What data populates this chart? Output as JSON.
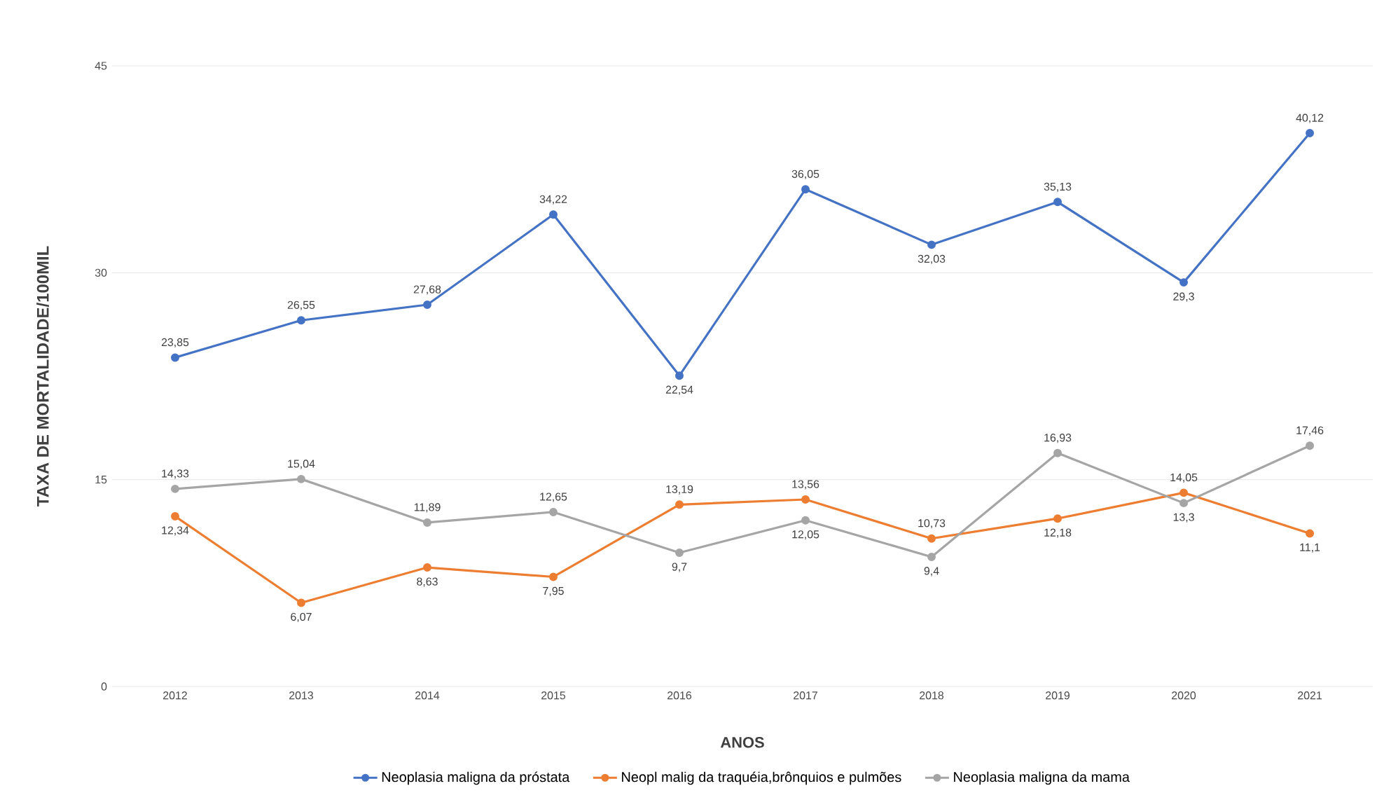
{
  "chart_data": {
    "type": "line",
    "xlabel": "ANOS",
    "ylabel": "TAXA DE MORTALIDADE/100MIL",
    "categories": [
      "2012",
      "2013",
      "2014",
      "2015",
      "2016",
      "2017",
      "2018",
      "2019",
      "2020",
      "2021"
    ],
    "series": [
      {
        "name": "Neoplasia maligna da próstata",
        "color": "#4472c4",
        "values": [
          23.85,
          26.55,
          27.68,
          34.22,
          22.54,
          36.05,
          32.03,
          35.13,
          29.3,
          40.12
        ],
        "value_labels": [
          "23,85",
          "26,55",
          "27,68",
          "34,22",
          "22,54",
          "36,05",
          "32,03",
          "35,13",
          "29,3",
          "40,12"
        ]
      },
      {
        "name": "Neopl malig da traquéia,brônquios e pulmões",
        "color": "#ed7d31",
        "values": [
          12.34,
          6.07,
          8.63,
          7.95,
          13.19,
          13.56,
          10.73,
          12.18,
          14.05,
          11.1
        ],
        "value_labels": [
          "12,34",
          "6,07",
          "8,63",
          "7,95",
          "13,19",
          "13,56",
          "10,73",
          "12,18",
          "14,05",
          "11,1"
        ]
      },
      {
        "name": "Neoplasia maligna da mama",
        "color": "#a5a5a5",
        "values": [
          14.33,
          15.04,
          11.89,
          12.65,
          9.7,
          12.05,
          9.4,
          16.93,
          13.3,
          17.46
        ],
        "value_labels": [
          "14,33",
          "15,04",
          "11,89",
          "12,65",
          "9,7",
          "12,05",
          "9,4",
          "16,93",
          "13,3",
          "17,46"
        ]
      }
    ],
    "ylim": [
      0,
      45
    ],
    "yticks": [
      0,
      15,
      30,
      45
    ],
    "grid": "y",
    "legend": "bottom",
    "marker": "circle",
    "line_style": "solid"
  }
}
